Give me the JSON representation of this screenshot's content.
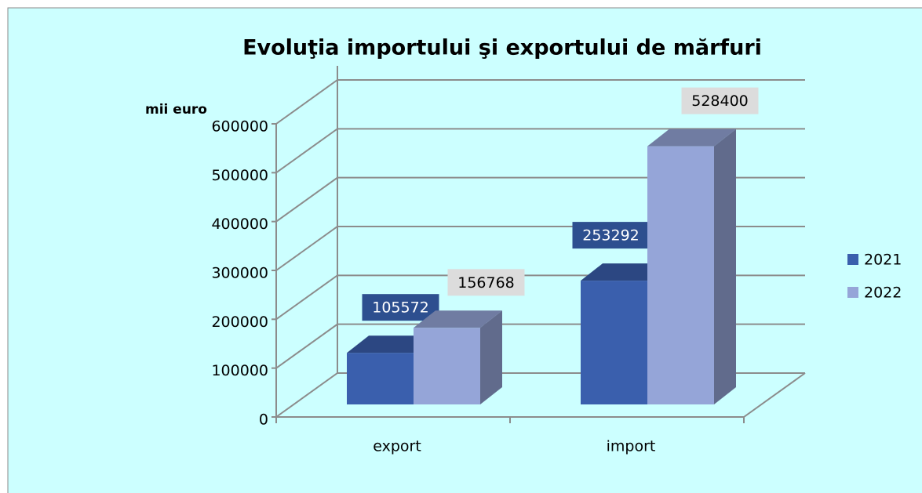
{
  "chart_data": {
    "type": "bar3d",
    "title": "Evoluţia importului şi exportului de mărfuri",
    "y_label": "mii euro",
    "categories": [
      "export",
      "import"
    ],
    "series": [
      {
        "name": "2021",
        "color": "#3a5fad",
        "values": [
          105572,
          253292
        ]
      },
      {
        "name": "2022",
        "color": "#95a5d8",
        "values": [
          156768,
          528400
        ]
      }
    ],
    "ylim": [
      0,
      600000
    ],
    "yticks": [
      0,
      100000,
      200000,
      300000,
      400000,
      500000,
      600000
    ],
    "grid": true,
    "legend": "right"
  }
}
